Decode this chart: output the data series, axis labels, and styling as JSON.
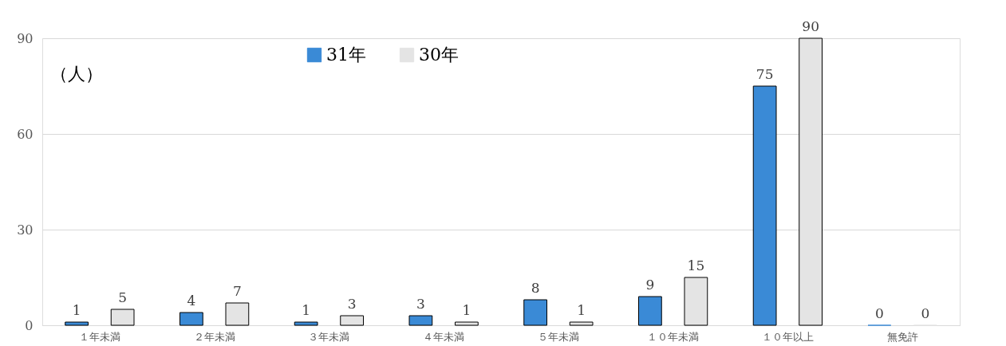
{
  "chart_data": {
    "type": "bar",
    "categories": [
      "１年未満",
      "２年未満",
      "３年未満",
      "４年未満",
      "５年未満",
      "１０年未満",
      "１０年以上",
      "無免許"
    ],
    "series": [
      {
        "name": "31年",
        "color": "#3a8ad6",
        "values": [
          1,
          4,
          1,
          3,
          8,
          9,
          75,
          0
        ]
      },
      {
        "name": "30年",
        "color": "#e4e4e4",
        "values": [
          5,
          7,
          3,
          1,
          1,
          15,
          90,
          0
        ]
      }
    ],
    "ylim": [
      0,
      90
    ],
    "yticks": [
      0,
      30,
      60,
      90
    ],
    "grid": "y",
    "legend": "top",
    "data_labels": true,
    "annotations": [
      "（人）"
    ]
  }
}
